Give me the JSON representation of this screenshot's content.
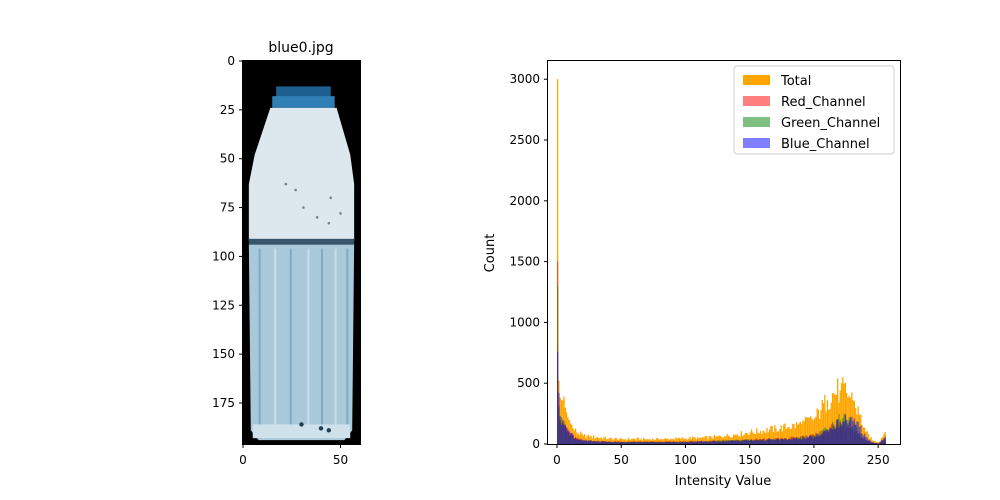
{
  "image_panel": {
    "title": "blue0.jpg",
    "xlim": [
      0,
      60
    ],
    "ylim": [
      196,
      0
    ],
    "x_ticks": [
      0,
      50
    ],
    "y_ticks": [
      0,
      25,
      50,
      75,
      100,
      125,
      150,
      175
    ],
    "colors": {
      "background": "#000000",
      "cap": "#2f7fb4",
      "cap_dark": "#1d5f8f",
      "upper_body": "#dce8ee",
      "lower_body": "#a9c9da",
      "lower_body_dark": "#5f93b0",
      "water_line": "#35566a"
    }
  },
  "chart_data": {
    "type": "histogram",
    "title": "",
    "xlabel": "Intensity Value",
    "ylabel": "Count",
    "xlim": [
      -7,
      267
    ],
    "ylim": [
      0,
      3150
    ],
    "x_ticks": [
      0,
      50,
      100,
      150,
      200,
      250
    ],
    "y_ticks": [
      0,
      500,
      1000,
      1500,
      2000,
      2500,
      3000
    ],
    "legend_position": "top-right",
    "grid": false,
    "series": [
      {
        "name": "Total",
        "color": "#ffa500",
        "opacity": 1.0,
        "points": [
          [
            0,
            3000
          ],
          [
            1,
            520
          ],
          [
            2,
            380
          ],
          [
            4,
            360
          ],
          [
            6,
            300
          ],
          [
            8,
            220
          ],
          [
            10,
            170
          ],
          [
            12,
            130
          ],
          [
            15,
            95
          ],
          [
            20,
            70
          ],
          [
            25,
            60
          ],
          [
            30,
            55
          ],
          [
            40,
            45
          ],
          [
            50,
            40
          ],
          [
            60,
            42
          ],
          [
            70,
            40
          ],
          [
            80,
            40
          ],
          [
            90,
            42
          ],
          [
            100,
            48
          ],
          [
            110,
            50
          ],
          [
            120,
            55
          ],
          [
            130,
            65
          ],
          [
            140,
            80
          ],
          [
            150,
            95
          ],
          [
            160,
            110
          ],
          [
            170,
            125
          ],
          [
            180,
            140
          ],
          [
            190,
            165
          ],
          [
            200,
            210
          ],
          [
            205,
            280
          ],
          [
            210,
            360
          ],
          [
            215,
            420
          ],
          [
            220,
            440
          ],
          [
            225,
            420
          ],
          [
            230,
            360
          ],
          [
            235,
            240
          ],
          [
            240,
            100
          ],
          [
            245,
            30
          ],
          [
            250,
            15
          ],
          [
            255,
            100
          ]
        ]
      },
      {
        "name": "Red_Channel",
        "color": "#ff0000",
        "opacity": 0.5,
        "points": [
          [
            0,
            1500
          ],
          [
            1,
            320
          ],
          [
            2,
            200
          ],
          [
            4,
            180
          ],
          [
            6,
            150
          ],
          [
            8,
            110
          ],
          [
            10,
            80
          ],
          [
            15,
            45
          ],
          [
            20,
            30
          ],
          [
            30,
            22
          ],
          [
            50,
            18
          ],
          [
            100,
            20
          ],
          [
            150,
            35
          ],
          [
            180,
            45
          ],
          [
            200,
            70
          ],
          [
            210,
            110
          ],
          [
            215,
            140
          ],
          [
            220,
            150
          ],
          [
            225,
            140
          ],
          [
            230,
            110
          ],
          [
            235,
            70
          ],
          [
            240,
            30
          ],
          [
            245,
            10
          ],
          [
            250,
            5
          ],
          [
            255,
            40
          ]
        ]
      },
      {
        "name": "Green_Channel",
        "color": "#008000",
        "opacity": 0.5,
        "points": [
          [
            0,
            1300
          ],
          [
            1,
            300
          ],
          [
            2,
            190
          ],
          [
            4,
            170
          ],
          [
            6,
            140
          ],
          [
            8,
            100
          ],
          [
            10,
            75
          ],
          [
            15,
            40
          ],
          [
            20,
            28
          ],
          [
            30,
            20
          ],
          [
            50,
            16
          ],
          [
            100,
            18
          ],
          [
            150,
            32
          ],
          [
            180,
            42
          ],
          [
            200,
            65
          ],
          [
            210,
            120
          ],
          [
            215,
            160
          ],
          [
            220,
            200
          ],
          [
            225,
            190
          ],
          [
            230,
            150
          ],
          [
            235,
            90
          ],
          [
            240,
            35
          ],
          [
            245,
            10
          ],
          [
            250,
            5
          ],
          [
            255,
            45
          ]
        ]
      },
      {
        "name": "Blue_Channel",
        "color": "#0000ff",
        "opacity": 0.5,
        "points": [
          [
            0,
            760
          ],
          [
            1,
            420
          ],
          [
            2,
            230
          ],
          [
            4,
            200
          ],
          [
            6,
            160
          ],
          [
            8,
            120
          ],
          [
            10,
            90
          ],
          [
            15,
            45
          ],
          [
            20,
            30
          ],
          [
            30,
            22
          ],
          [
            50,
            15
          ],
          [
            100,
            16
          ],
          [
            150,
            30
          ],
          [
            180,
            40
          ],
          [
            200,
            60
          ],
          [
            210,
            110
          ],
          [
            215,
            150
          ],
          [
            220,
            180
          ],
          [
            225,
            200
          ],
          [
            230,
            190
          ],
          [
            235,
            140
          ],
          [
            240,
            60
          ],
          [
            245,
            15
          ],
          [
            250,
            5
          ],
          [
            255,
            60
          ]
        ]
      }
    ]
  }
}
